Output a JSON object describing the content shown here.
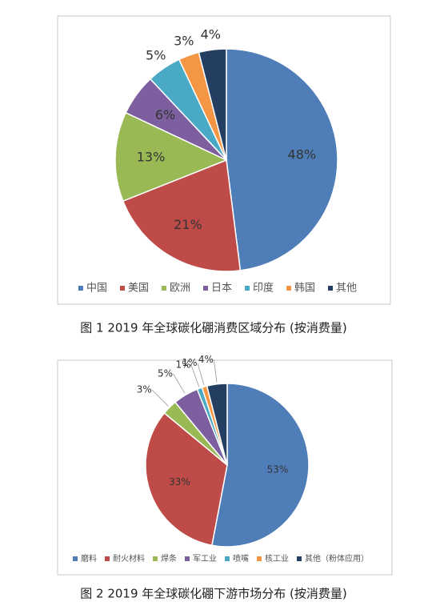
{
  "chart_data": [
    {
      "type": "pie",
      "title": "图 1  2019 年全球碳化硼消费区域分布 (按消费量)",
      "categories": [
        "中国",
        "美国",
        "欧洲",
        "日本",
        "印度",
        "韩国",
        "其他"
      ],
      "values": [
        48,
        21,
        13,
        6,
        5,
        3,
        4
      ],
      "value_labels": [
        "48%",
        "21%",
        "13%",
        "6%",
        "5%",
        "3%",
        "4%"
      ],
      "colors": [
        "#4f7db8",
        "#be4b48",
        "#98b954",
        "#7d5fa0",
        "#4aa9c4",
        "#f59644",
        "#243f61"
      ]
    },
    {
      "type": "pie",
      "title": "图 2  2019 年全球碳化硼下游市场分布 (按消费量)",
      "categories": [
        "磨料",
        "耐火材料",
        "焊条",
        "军工业",
        "喷嘴",
        "核工业",
        "其他（粉体应用）"
      ],
      "values": [
        53,
        33,
        3,
        5,
        1,
        1,
        4
      ],
      "value_labels": [
        "53%",
        "33%",
        "3%",
        "5%",
        "1%",
        "1%",
        "4%"
      ],
      "colors": [
        "#4f7db8",
        "#be4b48",
        "#98b954",
        "#7d5fa0",
        "#4aa9c4",
        "#f59644",
        "#243f61"
      ]
    }
  ]
}
